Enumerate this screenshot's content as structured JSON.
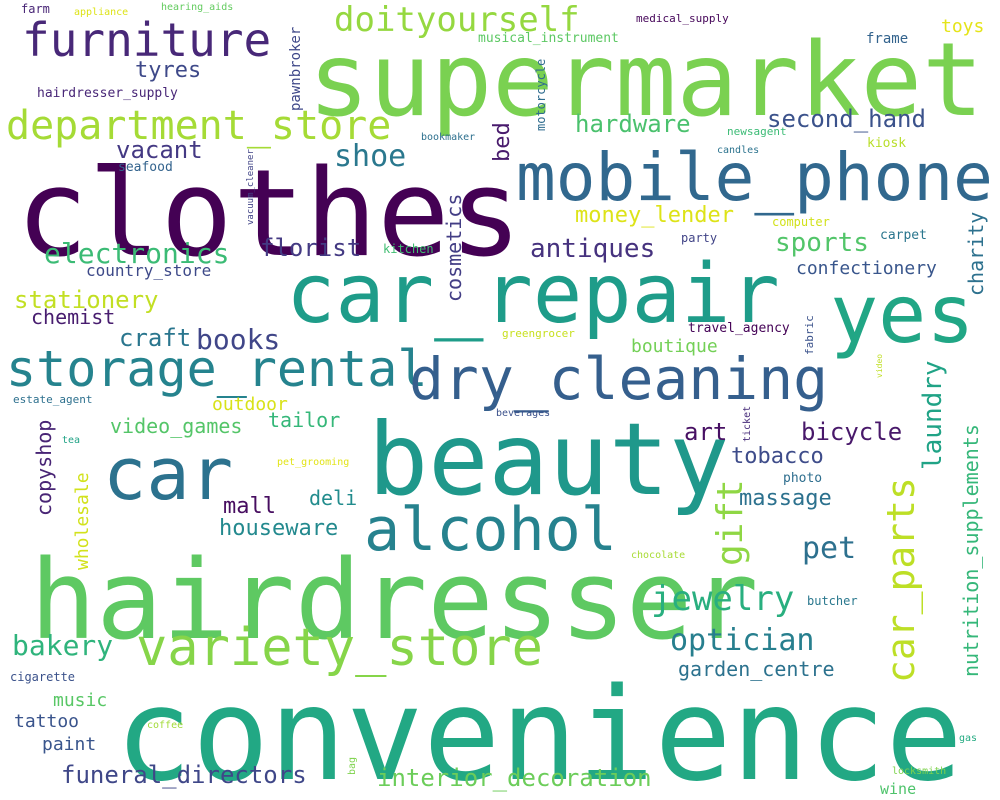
{
  "words": [
    {
      "text": "supermarket",
      "color": "#7ad151"
    },
    {
      "text": "clothes",
      "color": "#440154"
    },
    {
      "text": "convenience",
      "color": "#22a884"
    },
    {
      "text": "hairdresser",
      "color": "#5ec962"
    },
    {
      "text": "car_repair",
      "color": "#1e9c89"
    },
    {
      "text": "beauty",
      "color": "#1f988b"
    },
    {
      "text": "yes",
      "color": "#21a685"
    },
    {
      "text": "mobile_phone",
      "color": "#31688e"
    },
    {
      "text": "car",
      "color": "#2c728e"
    },
    {
      "text": "storage_rental",
      "color": "#25838e"
    },
    {
      "text": "dry_cleaning",
      "color": "#355f8d"
    },
    {
      "text": "alcohol",
      "color": "#26828e"
    },
    {
      "text": "variety_store",
      "color": "#86d549"
    },
    {
      "text": "furniture",
      "color": "#482878"
    },
    {
      "text": "department_store",
      "color": "#a5db36"
    },
    {
      "text": "doityourself",
      "color": "#95d840"
    },
    {
      "text": "car_parts",
      "color": "#bddf26"
    },
    {
      "text": "gift",
      "color": "#8fd744"
    },
    {
      "text": "jewelry",
      "color": "#29af7f"
    },
    {
      "text": "optician",
      "color": "#277f8e"
    },
    {
      "text": "shoe",
      "color": "#2a788e"
    },
    {
      "text": "pet",
      "color": "#2d708e"
    },
    {
      "text": "electronics",
      "color": "#3bbb75"
    },
    {
      "text": "nutrition_supplements",
      "color": "#35b779"
    },
    {
      "text": "hardware",
      "color": "#4ac16d"
    },
    {
      "text": "second_hand",
      "color": "#3b528b"
    },
    {
      "text": "sports",
      "color": "#52c569"
    },
    {
      "text": "antiques",
      "color": "#46327e"
    },
    {
      "text": "tyres",
      "color": "#3e4989"
    },
    {
      "text": "vacant",
      "color": "#443983"
    },
    {
      "text": "florist",
      "color": "#443a83"
    },
    {
      "text": "books",
      "color": "#404688"
    },
    {
      "text": "bakery",
      "color": "#2fb47c"
    },
    {
      "text": "stationery",
      "color": "#c2df23"
    },
    {
      "text": "money_lender",
      "color": "#dde318"
    },
    {
      "text": "cosmetics",
      "color": "#433e85"
    },
    {
      "text": "laundry",
      "color": "#20a386"
    },
    {
      "text": "bicycle",
      "color": "#48186a"
    },
    {
      "text": "tobacco",
      "color": "#3e4c8a"
    },
    {
      "text": "craft",
      "color": "#2a768e"
    },
    {
      "text": "art",
      "color": "#471063"
    },
    {
      "text": "mall",
      "color": "#470d60"
    },
    {
      "text": "houseware",
      "color": "#23898e"
    },
    {
      "text": "massage",
      "color": "#2c718e"
    },
    {
      "text": "deli",
      "color": "#228c8d"
    },
    {
      "text": "garden_centre",
      "color": "#2c728e"
    },
    {
      "text": "interior_decoration",
      "color": "#6ccd5a"
    },
    {
      "text": "funeral_directors",
      "color": "#3f4788"
    },
    {
      "text": "charity",
      "color": "#2d718e"
    },
    {
      "text": "confectionery",
      "color": "#39568c"
    },
    {
      "text": "country_store",
      "color": "#3e4a89"
    },
    {
      "text": "chemist",
      "color": "#481d6f"
    },
    {
      "text": "boutique",
      "color": "#73d056"
    },
    {
      "text": "outdoor",
      "color": "#d8e219"
    },
    {
      "text": "tailor",
      "color": "#35b779"
    },
    {
      "text": "video_games",
      "color": "#54c568"
    },
    {
      "text": "copyshop",
      "color": "#482475"
    },
    {
      "text": "wholesale",
      "color": "#d2e21b"
    },
    {
      "text": "music",
      "color": "#58c765"
    },
    {
      "text": "tattoo",
      "color": "#3a548c"
    },
    {
      "text": "paint",
      "color": "#39558c"
    },
    {
      "text": "wine",
      "color": "#4ec36b"
    },
    {
      "text": "toys",
      "color": "#e5e419"
    },
    {
      "text": "frame",
      "color": "#33638d"
    },
    {
      "text": "pawnbroker",
      "color": "#3f4889"
    },
    {
      "text": "motorcycle",
      "color": "#2f6c8e"
    },
    {
      "text": "musical_instrument",
      "color": "#5cc863"
    },
    {
      "text": "bed",
      "color": "#481a6c"
    },
    {
      "text": "hairdresser_supply",
      "color": "#482677"
    },
    {
      "text": "seafood",
      "color": "#33638d"
    },
    {
      "text": "medical_supply",
      "color": "#450559"
    },
    {
      "text": "computer",
      "color": "#d2e21b"
    },
    {
      "text": "candles",
      "color": "#2c738e"
    },
    {
      "text": "bookmaker",
      "color": "#2d708e"
    },
    {
      "text": "newsagent",
      "color": "#3bbb75"
    },
    {
      "text": "kiosk",
      "color": "#b8de29"
    },
    {
      "text": "carpet",
      "color": "#2a768e"
    },
    {
      "text": "party",
      "color": "#414487"
    },
    {
      "text": "kitchen",
      "color": "#40bd72"
    },
    {
      "text": "greengrocer",
      "color": "#c8e020"
    },
    {
      "text": "travel_agency",
      "color": "#440256"
    },
    {
      "text": "fabric",
      "color": "#3b528b"
    },
    {
      "text": "video",
      "color": "#c0df25"
    },
    {
      "text": "estate_agent",
      "color": "#2d708e"
    },
    {
      "text": "beverages",
      "color": "#3b518b"
    },
    {
      "text": "ticket",
      "color": "#472c7a"
    },
    {
      "text": "tea",
      "color": "#20a386"
    },
    {
      "text": "pet_grooming",
      "color": "#e2e418"
    },
    {
      "text": "photo",
      "color": "#2e6e8e"
    },
    {
      "text": "chocolate",
      "color": "#a8db34"
    },
    {
      "text": "butcher",
      "color": "#2a788e"
    },
    {
      "text": "cigarette",
      "color": "#3b528b"
    },
    {
      "text": "coffee",
      "color": "#a2da37"
    },
    {
      "text": "bag",
      "color": "#7fd34e"
    },
    {
      "text": "gas",
      "color": "#25ab82"
    },
    {
      "text": "locksmith",
      "color": "#7fd34e"
    },
    {
      "text": "farm",
      "color": "#482576"
    },
    {
      "text": "appliance",
      "color": "#dde318"
    },
    {
      "text": "hearing_aids",
      "color": "#63cb5f"
    },
    {
      "text": "vacuum_cleaner",
      "color": "#414487"
    }
  ]
}
